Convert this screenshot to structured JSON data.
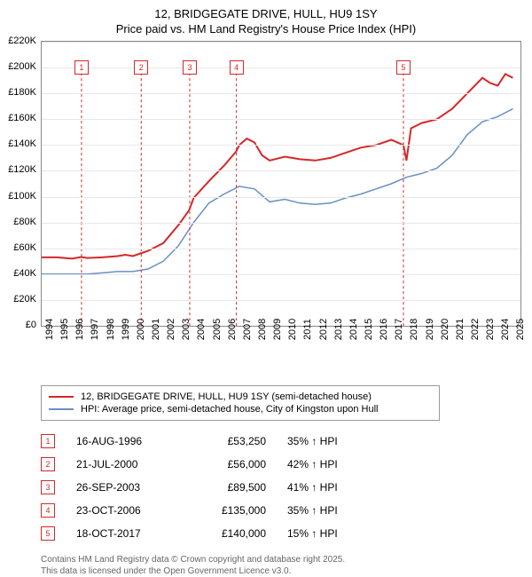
{
  "title": "12, BRIDGEGATE DRIVE, HULL, HU9 1SY",
  "subtitle": "Price paid vs. HM Land Registry's House Price Index (HPI)",
  "chart": {
    "type": "line",
    "background_color": "#ffffff",
    "grid_color": "#e8e8e8",
    "border_color": "#888888",
    "ytick_step": 20000,
    "ylim": [
      0,
      220000
    ],
    "xlim": [
      1994,
      2025.5
    ],
    "yticks": [
      "£0",
      "£20K",
      "£40K",
      "£60K",
      "£80K",
      "£100K",
      "£120K",
      "£140K",
      "£160K",
      "£180K",
      "£200K",
      "£220K"
    ],
    "xticks": [
      "1994",
      "1995",
      "1996",
      "1997",
      "1998",
      "1999",
      "2000",
      "2001",
      "2002",
      "2003",
      "2004",
      "2005",
      "2006",
      "2007",
      "2008",
      "2009",
      "2010",
      "2011",
      "2012",
      "2013",
      "2014",
      "2015",
      "2016",
      "2017",
      "2018",
      "2019",
      "2020",
      "2021",
      "2022",
      "2023",
      "2024",
      "2025"
    ],
    "series": [
      {
        "name": "price_paid",
        "color": "#d62728",
        "width": 2,
        "legend": "12, BRIDGEGATE DRIVE, HULL, HU9 1SY (semi-detached house)",
        "points": [
          [
            1994,
            53000
          ],
          [
            1995,
            53000
          ],
          [
            1996,
            52000
          ],
          [
            1996.6,
            53250
          ],
          [
            1997,
            52500
          ],
          [
            1998,
            53000
          ],
          [
            1999,
            54000
          ],
          [
            1999.5,
            55000
          ],
          [
            2000,
            54000
          ],
          [
            2000.5,
            56000
          ],
          [
            2001,
            58000
          ],
          [
            2002,
            64000
          ],
          [
            2003,
            78000
          ],
          [
            2003.7,
            89500
          ],
          [
            2004,
            99000
          ],
          [
            2005,
            112000
          ],
          [
            2006,
            124000
          ],
          [
            2006.8,
            135000
          ],
          [
            2007,
            140000
          ],
          [
            2007.5,
            145000
          ],
          [
            2008,
            142000
          ],
          [
            2008.5,
            132000
          ],
          [
            2009,
            128000
          ],
          [
            2010,
            131000
          ],
          [
            2011,
            129000
          ],
          [
            2012,
            128000
          ],
          [
            2013,
            130000
          ],
          [
            2014,
            134000
          ],
          [
            2015,
            138000
          ],
          [
            2016,
            140000
          ],
          [
            2017,
            144000
          ],
          [
            2017.8,
            140000
          ],
          [
            2018,
            128000
          ],
          [
            2018.3,
            153000
          ],
          [
            2019,
            157000
          ],
          [
            2020,
            160000
          ],
          [
            2021,
            168000
          ],
          [
            2022,
            180000
          ],
          [
            2023,
            192000
          ],
          [
            2023.5,
            188000
          ],
          [
            2024,
            186000
          ],
          [
            2024.5,
            195000
          ],
          [
            2025,
            192000
          ]
        ]
      },
      {
        "name": "hpi",
        "color": "#6a8fc4",
        "width": 1.5,
        "legend": "HPI: Average price, semi-detached house, City of Kingston upon Hull",
        "points": [
          [
            1994,
            40000
          ],
          [
            1995,
            40000
          ],
          [
            1996,
            40000
          ],
          [
            1997,
            40000
          ],
          [
            1998,
            41000
          ],
          [
            1999,
            42000
          ],
          [
            2000,
            42000
          ],
          [
            2001,
            44000
          ],
          [
            2002,
            50000
          ],
          [
            2003,
            62000
          ],
          [
            2004,
            80000
          ],
          [
            2005,
            95000
          ],
          [
            2006,
            102000
          ],
          [
            2007,
            108000
          ],
          [
            2008,
            106000
          ],
          [
            2009,
            96000
          ],
          [
            2010,
            98000
          ],
          [
            2011,
            95000
          ],
          [
            2012,
            94000
          ],
          [
            2013,
            95000
          ],
          [
            2014,
            99000
          ],
          [
            2015,
            102000
          ],
          [
            2016,
            106000
          ],
          [
            2017,
            110000
          ],
          [
            2018,
            115000
          ],
          [
            2019,
            118000
          ],
          [
            2020,
            122000
          ],
          [
            2021,
            132000
          ],
          [
            2022,
            148000
          ],
          [
            2023,
            158000
          ],
          [
            2024,
            162000
          ],
          [
            2025,
            168000
          ]
        ]
      }
    ],
    "markers": [
      {
        "num": "1",
        "x": 1996.62,
        "y": 200000
      },
      {
        "num": "2",
        "x": 2000.55,
        "y": 200000
      },
      {
        "num": "3",
        "x": 2003.74,
        "y": 200000
      },
      {
        "num": "4",
        "x": 2006.81,
        "y": 200000
      },
      {
        "num": "5",
        "x": 2017.8,
        "y": 200000
      }
    ]
  },
  "sales": [
    {
      "num": "1",
      "date": "16-AUG-1996",
      "price": "£53,250",
      "pct": "35% ↑ HPI"
    },
    {
      "num": "2",
      "date": "21-JUL-2000",
      "price": "£56,000",
      "pct": "42% ↑ HPI"
    },
    {
      "num": "3",
      "date": "26-SEP-2003",
      "price": "£89,500",
      "pct": "41% ↑ HPI"
    },
    {
      "num": "4",
      "date": "23-OCT-2006",
      "price": "£135,000",
      "pct": "35% ↑ HPI"
    },
    {
      "num": "5",
      "date": "18-OCT-2017",
      "price": "£140,000",
      "pct": "15% ↑ HPI"
    }
  ],
  "footer1": "Contains HM Land Registry data © Crown copyright and database right 2025.",
  "footer2": "This data is licensed under the Open Government Licence v3.0."
}
